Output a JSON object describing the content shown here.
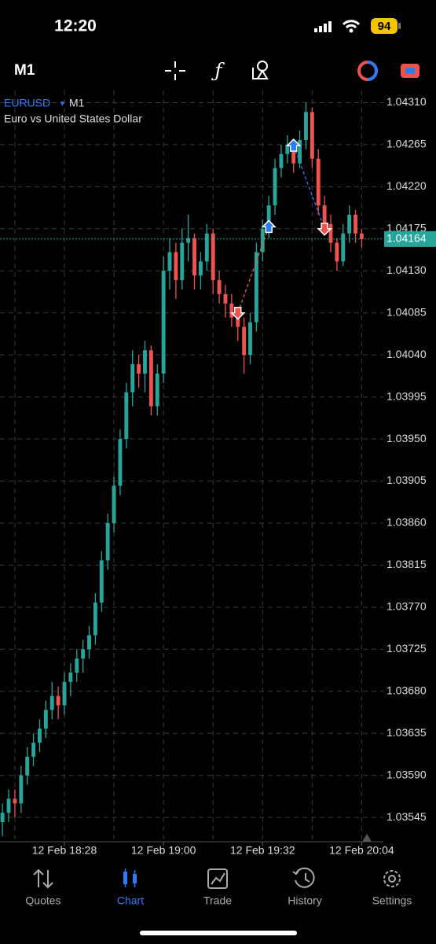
{
  "status_bar": {
    "time": "12:20",
    "battery": "94"
  },
  "toolbar": {
    "timeframe": "M1"
  },
  "chart_data": {
    "type": "candlestick",
    "symbol": "EURUSD",
    "timeframe": "M1",
    "description": "Euro vs United States Dollar",
    "up_color": "#26a69a",
    "down_color": "#ef5350",
    "grid": true,
    "xlim": [
      -0.4,
      61.5
    ],
    "ylim": [
      1.03519,
      1.04323
    ],
    "xticks": [
      {
        "value": 10,
        "label": "12 Feb 18:28"
      },
      {
        "value": 26,
        "label": "12 Feb 19:00"
      },
      {
        "value": 42,
        "label": "12 Feb 19:32"
      },
      {
        "value": 58,
        "label": "12 Feb 20:04"
      }
    ],
    "xgrid": [
      2,
      18,
      34,
      50
    ],
    "yticks": [
      {
        "value": 1.0431,
        "label": "1.04310"
      },
      1.04265,
      {
        "value": 1.0422,
        "label": "1.04220"
      },
      1.04175,
      {
        "value": 1.0413,
        "label": "1.04130"
      },
      1.04085,
      {
        "value": 1.0404,
        "label": "1.04040"
      },
      1.03995,
      {
        "value": 1.0395,
        "label": "1.03950"
      },
      1.03905,
      {
        "value": 1.0386,
        "label": "1.03860"
      },
      1.03815,
      {
        "value": 1.0377,
        "label": "1.03770"
      },
      1.03725,
      {
        "value": 1.0368,
        "label": "1.03680"
      },
      1.03635,
      {
        "value": 1.0359,
        "label": "1.03590"
      },
      1.03545
    ],
    "current_price": 1.04164,
    "ohlc": [
      [
        1.0354,
        1.0356,
        1.03525,
        1.0355
      ],
      [
        1.0355,
        1.03575,
        1.0354,
        1.03565
      ],
      [
        1.03565,
        1.03575,
        1.03545,
        1.0356
      ],
      [
        1.0356,
        1.036,
        1.0355,
        1.0359
      ],
      [
        1.0359,
        1.0362,
        1.0358,
        1.0361
      ],
      [
        1.0361,
        1.03635,
        1.036,
        1.03625
      ],
      [
        1.03625,
        1.0365,
        1.03615,
        1.0364
      ],
      [
        1.0364,
        1.0367,
        1.0363,
        1.0366
      ],
      [
        1.0366,
        1.0369,
        1.0365,
        1.03675
      ],
      [
        1.03675,
        1.03685,
        1.0365,
        1.03665
      ],
      [
        1.03665,
        1.037,
        1.03655,
        1.0369
      ],
      [
        1.0369,
        1.0371,
        1.03675,
        1.037
      ],
      [
        1.037,
        1.03725,
        1.0369,
        1.03715
      ],
      [
        1.03715,
        1.03735,
        1.037,
        1.03725
      ],
      [
        1.03725,
        1.0375,
        1.03715,
        1.0374
      ],
      [
        1.0374,
        1.03785,
        1.0373,
        1.03775
      ],
      [
        1.03775,
        1.0383,
        1.03765,
        1.0382
      ],
      [
        1.0382,
        1.0387,
        1.0381,
        1.0386
      ],
      [
        1.0386,
        1.0391,
        1.0385,
        1.039
      ],
      [
        1.039,
        1.0396,
        1.0389,
        1.0395
      ],
      [
        1.0395,
        1.0401,
        1.0394,
        1.04
      ],
      [
        1.04,
        1.04045,
        1.03985,
        1.0403
      ],
      [
        1.0403,
        1.0404,
        1.04005,
        1.0402
      ],
      [
        1.0402,
        1.04055,
        1.04,
        1.04045
      ],
      [
        1.04045,
        1.0405,
        1.03975,
        1.03985
      ],
      [
        1.03985,
        1.0403,
        1.03975,
        1.0402
      ],
      [
        1.0402,
        1.04145,
        1.0401,
        1.0413
      ],
      [
        1.0413,
        1.04165,
        1.0411,
        1.0415
      ],
      [
        1.0415,
        1.0416,
        1.041,
        1.0412
      ],
      [
        1.0412,
        1.04175,
        1.0411,
        1.0416
      ],
      [
        1.0416,
        1.0419,
        1.0414,
        1.04165
      ],
      [
        1.04165,
        1.0417,
        1.0411,
        1.04125
      ],
      [
        1.04125,
        1.0415,
        1.0411,
        1.0414
      ],
      [
        1.0414,
        1.0418,
        1.0413,
        1.0417
      ],
      [
        1.0417,
        1.04175,
        1.04105,
        1.0412
      ],
      [
        1.0412,
        1.0413,
        1.04095,
        1.04105
      ],
      [
        1.04105,
        1.04115,
        1.0408,
        1.04095
      ],
      [
        1.04095,
        1.04105,
        1.0407,
        1.0408
      ],
      [
        1.0408,
        1.0409,
        1.04055,
        1.0407
      ],
      [
        1.0407,
        1.0408,
        1.0402,
        1.0404
      ],
      [
        1.0404,
        1.04085,
        1.0403,
        1.04075
      ],
      [
        1.04075,
        1.0416,
        1.04065,
        1.0415
      ],
      [
        1.0415,
        1.04185,
        1.0414,
        1.04175
      ],
      [
        1.04175,
        1.0421,
        1.04165,
        1.042
      ],
      [
        1.042,
        1.0425,
        1.0419,
        1.0424
      ],
      [
        1.0424,
        1.04265,
        1.0423,
        1.04255
      ],
      [
        1.04255,
        1.04275,
        1.04245,
        1.04265
      ],
      [
        1.04265,
        1.0427,
        1.04235,
        1.04245
      ],
      [
        1.04245,
        1.0428,
        1.0424,
        1.0427
      ],
      [
        1.0427,
        1.0431,
        1.0426,
        1.043
      ],
      [
        1.043,
        1.04305,
        1.0424,
        1.0425
      ],
      [
        1.0425,
        1.0426,
        1.0419,
        1.042
      ],
      [
        1.042,
        1.0421,
        1.0417,
        1.0418
      ],
      [
        1.0418,
        1.0419,
        1.0415,
        1.0416
      ],
      [
        1.0416,
        1.04165,
        1.0413,
        1.0414
      ],
      [
        1.0414,
        1.0418,
        1.04135,
        1.0417
      ],
      [
        1.0417,
        1.042,
        1.0416,
        1.0419
      ],
      [
        1.0419,
        1.04195,
        1.0416,
        1.0417
      ],
      [
        1.0417,
        1.04175,
        1.04155,
        1.04164
      ]
    ],
    "markers": [
      {
        "index": 38,
        "value": 1.04085,
        "side": "sell"
      },
      {
        "index": 43,
        "value": 1.04177,
        "side": "buy"
      },
      {
        "index": 47,
        "value": 1.04264,
        "side": "buy"
      },
      {
        "index": 52,
        "value": 1.04175,
        "side": "sell"
      }
    ],
    "marker_colors": {
      "buy": "#2f7bf5",
      "sell": "#ef5350"
    }
  },
  "nav": [
    {
      "label": "Quotes"
    },
    {
      "label": "Chart"
    },
    {
      "label": "Trade"
    },
    {
      "label": "History"
    },
    {
      "label": "Settings"
    }
  ]
}
